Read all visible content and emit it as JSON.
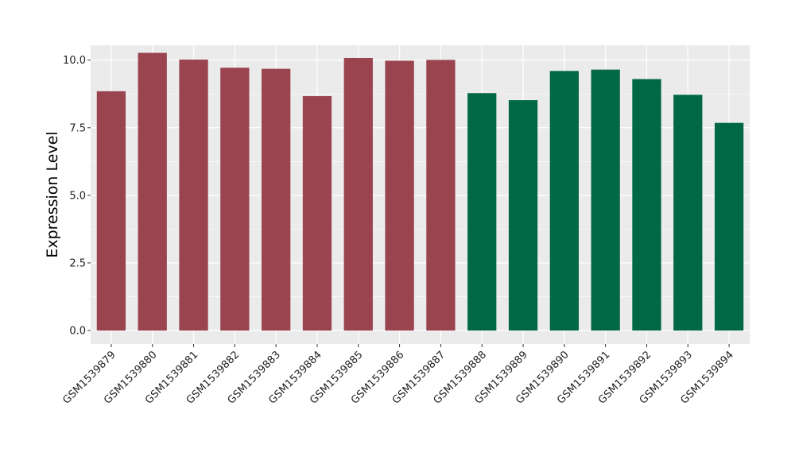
{
  "chart_data": {
    "type": "bar",
    "title": "",
    "xlabel": "",
    "ylabel": "Expression Level",
    "ylim": [
      -0.5,
      10.55
    ],
    "yticks": [
      0.0,
      2.5,
      5.0,
      7.5,
      10.0
    ],
    "ytick_labels": [
      "0.0",
      "2.5",
      "5.0",
      "7.5",
      "10.0"
    ],
    "grid": true,
    "legend": "none",
    "categories": [
      "GSM1539879",
      "GSM1539880",
      "GSM1539881",
      "GSM1539882",
      "GSM1539883",
      "GSM1539884",
      "GSM1539885",
      "GSM1539886",
      "GSM1539887",
      "GSM1539888",
      "GSM1539889",
      "GSM1539890",
      "GSM1539891",
      "GSM1539892",
      "GSM1539893",
      "GSM1539894"
    ],
    "values": [
      8.85,
      10.27,
      10.02,
      9.72,
      9.68,
      8.67,
      10.08,
      9.98,
      10.01,
      8.78,
      8.52,
      9.6,
      9.65,
      9.3,
      8.72,
      7.68
    ],
    "bar_groups": [
      0,
      0,
      0,
      0,
      0,
      0,
      0,
      0,
      0,
      1,
      1,
      1,
      1,
      1,
      1,
      1
    ],
    "group_colors": [
      "#99444F",
      "#006845"
    ],
    "panel_color": "#EBEBEB",
    "grid_color": "#FFFFFF"
  }
}
